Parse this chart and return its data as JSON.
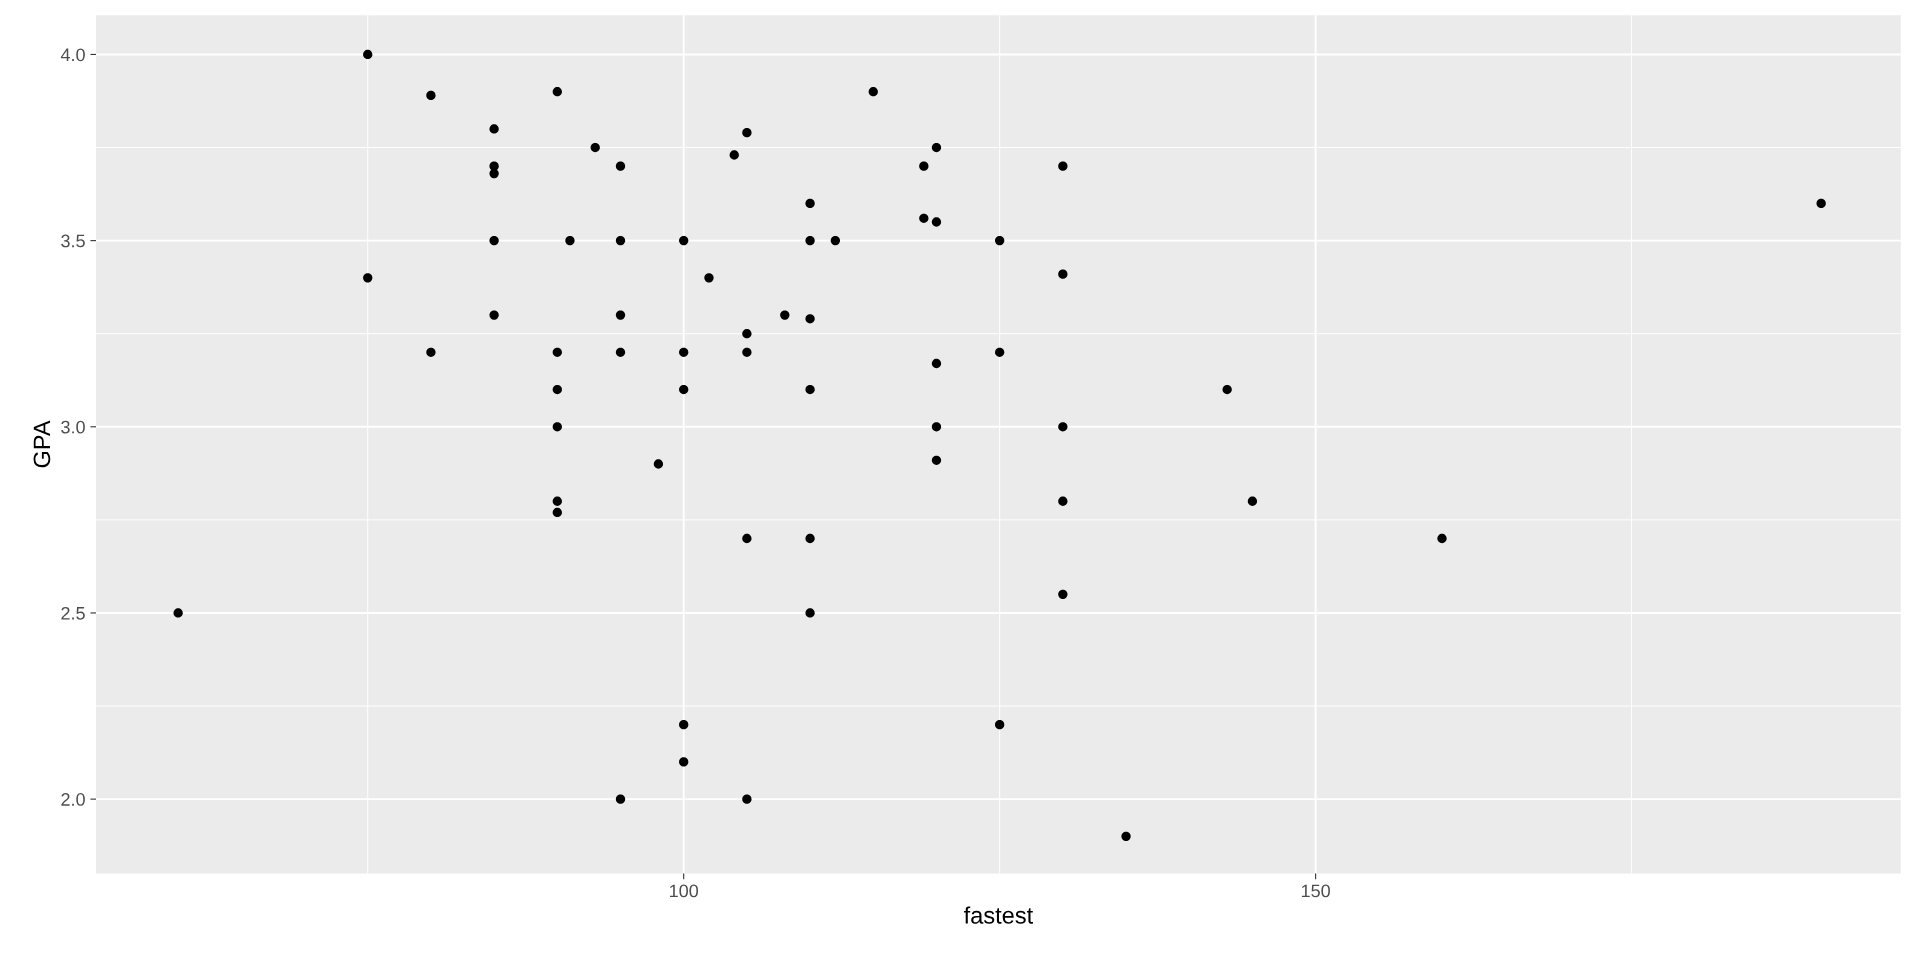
{
  "chart_data": {
    "type": "scatter",
    "xlabel": "fastest",
    "ylabel": "GPA",
    "marker": "circle",
    "grid": true,
    "xlim": [
      53.5,
      196.3
    ],
    "ylim": [
      1.8,
      4.105
    ],
    "xticks": [
      {
        "value": 75,
        "label": null
      },
      100,
      {
        "value": 125,
        "label": null
      },
      150,
      {
        "value": 175,
        "label": null
      }
    ],
    "yticks": [
      {
        "value": 2.0,
        "label": "2.0"
      },
      {
        "value": 2.25,
        "label": null
      },
      {
        "value": 2.5,
        "label": "2.5"
      },
      {
        "value": 2.75,
        "label": null
      },
      {
        "value": 3.0,
        "label": "3.0"
      },
      {
        "value": 3.25,
        "label": null
      },
      {
        "value": 3.5,
        "label": "3.5"
      },
      {
        "value": 3.75,
        "label": null
      },
      {
        "value": 4.0,
        "label": "4.0"
      }
    ],
    "series": [
      {
        "color": "#000000",
        "x": [
          60,
          75,
          75,
          80,
          80,
          85,
          85,
          85,
          85,
          85,
          90,
          90,
          90,
          90,
          90,
          90,
          91,
          93,
          95,
          95,
          95,
          95,
          95,
          98,
          100,
          100,
          100,
          100,
          100,
          102,
          104,
          105,
          105,
          105,
          105,
          105,
          108,
          110,
          110,
          110,
          110,
          110,
          110,
          112,
          115,
          119,
          119,
          120,
          120,
          120,
          120,
          120,
          125,
          125,
          125,
          130,
          130,
          130,
          130,
          130,
          135,
          143,
          145,
          160,
          190
        ],
        "values": [
          2.5,
          4.0,
          3.4,
          3.89,
          3.2,
          3.8,
          3.7,
          3.68,
          3.5,
          3.3,
          3.9,
          3.2,
          3.1,
          3.0,
          2.8,
          2.77,
          3.5,
          3.75,
          3.7,
          3.5,
          3.3,
          3.2,
          2.0,
          2.9,
          3.5,
          3.2,
          3.1,
          2.2,
          2.1,
          3.4,
          3.73,
          3.79,
          3.25,
          3.2,
          2.7,
          2.0,
          3.3,
          3.6,
          3.5,
          3.29,
          3.1,
          2.7,
          2.5,
          3.5,
          3.9,
          3.7,
          3.56,
          3.75,
          3.55,
          3.17,
          3.0,
          2.91,
          3.5,
          3.2,
          2.2,
          3.7,
          3.41,
          3.0,
          2.8,
          2.55,
          1.9,
          3.1,
          2.8,
          2.7,
          3.6
        ]
      }
    ]
  }
}
